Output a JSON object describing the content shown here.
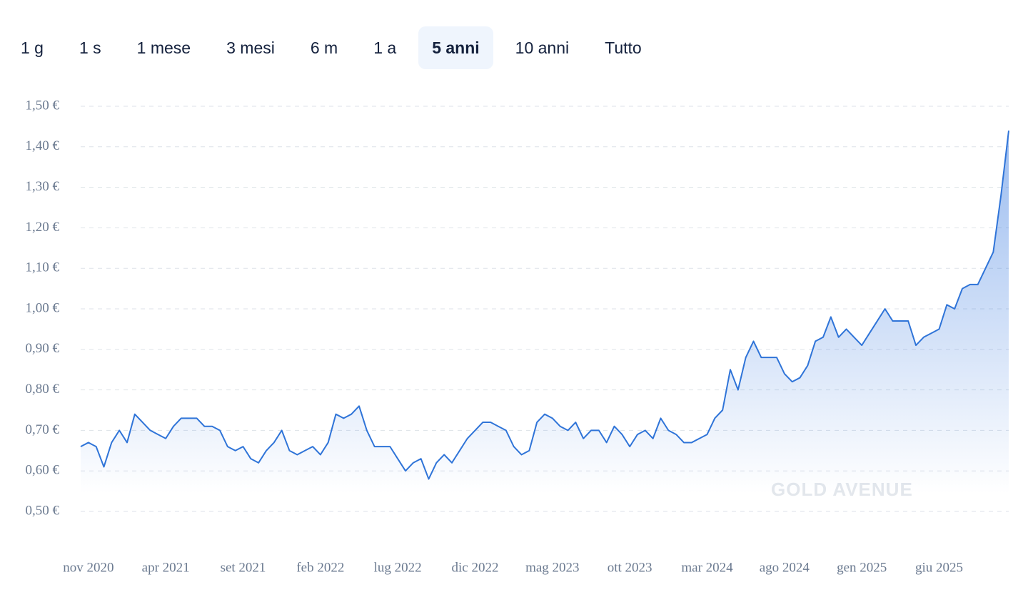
{
  "tabs": [
    {
      "label": "1 g",
      "active": false
    },
    {
      "label": "1 s",
      "active": false
    },
    {
      "label": "1 mese",
      "active": false
    },
    {
      "label": "3 mesi",
      "active": false
    },
    {
      "label": "6 m",
      "active": false
    },
    {
      "label": "1 a",
      "active": false
    },
    {
      "label": "5 anni",
      "active": true
    },
    {
      "label": "10 anni",
      "active": false
    },
    {
      "label": "Tutto",
      "active": false
    }
  ],
  "chart_data": {
    "type": "line",
    "watermark": "GOLD AVENUE",
    "categories": [
      null,
      "nov 2020",
      null,
      null,
      null,
      null,
      null,
      null,
      null,
      null,
      null,
      "apr 2021",
      null,
      null,
      null,
      null,
      null,
      null,
      null,
      null,
      null,
      "set 2021",
      null,
      null,
      null,
      null,
      null,
      null,
      null,
      null,
      null,
      "feb 2022",
      null,
      null,
      null,
      null,
      null,
      null,
      null,
      null,
      null,
      "lug 2022",
      null,
      null,
      null,
      null,
      null,
      null,
      null,
      null,
      null,
      "dic 2022",
      null,
      null,
      null,
      null,
      null,
      null,
      null,
      null,
      null,
      "mag 2023",
      null,
      null,
      null,
      null,
      null,
      null,
      null,
      null,
      null,
      "ott 2023",
      null,
      null,
      null,
      null,
      null,
      null,
      null,
      null,
      null,
      "mar 2024",
      null,
      null,
      null,
      null,
      null,
      null,
      null,
      null,
      null,
      "ago 2024",
      null,
      null,
      null,
      null,
      null,
      null,
      null,
      null,
      null,
      "gen 2025",
      null,
      null,
      null,
      null,
      null,
      null,
      null,
      null,
      null,
      "giu 2025",
      null,
      null,
      null,
      null,
      null,
      null,
      null,
      null,
      null
    ],
    "series": [
      {
        "color": "#2f74d8",
        "values": [
          0.66,
          0.67,
          0.66,
          0.61,
          0.67,
          0.7,
          0.67,
          0.74,
          0.72,
          0.7,
          0.69,
          0.68,
          0.71,
          0.73,
          0.73,
          0.73,
          0.71,
          0.71,
          0.7,
          0.66,
          0.65,
          0.66,
          0.63,
          0.62,
          0.65,
          0.67,
          0.7,
          0.65,
          0.64,
          0.65,
          0.66,
          0.64,
          0.67,
          0.74,
          0.73,
          0.74,
          0.76,
          0.7,
          0.66,
          0.66,
          0.66,
          0.63,
          0.6,
          0.62,
          0.63,
          0.58,
          0.62,
          0.64,
          0.62,
          0.65,
          0.68,
          0.7,
          0.72,
          0.72,
          0.71,
          0.7,
          0.66,
          0.64,
          0.65,
          0.72,
          0.74,
          0.73,
          0.71,
          0.7,
          0.72,
          0.68,
          0.7,
          0.7,
          0.67,
          0.71,
          0.69,
          0.66,
          0.69,
          0.7,
          0.68,
          0.73,
          0.7,
          0.69,
          0.67,
          0.67,
          0.68,
          0.69,
          0.73,
          0.75,
          0.85,
          0.8,
          0.88,
          0.92,
          0.88,
          0.88,
          0.88,
          0.84,
          0.82,
          0.83,
          0.86,
          0.92,
          0.93,
          0.98,
          0.93,
          0.95,
          0.93,
          0.91,
          0.94,
          0.97,
          1.0,
          0.97,
          0.97,
          0.97,
          0.91,
          0.93,
          0.94,
          0.95,
          1.01,
          1.0,
          1.05,
          1.06,
          1.06,
          1.1,
          1.14,
          1.28,
          1.44
        ]
      }
    ],
    "ylim": [
      0.5,
      1.5
    ],
    "yticks": [
      {
        "value": 0.5,
        "label": "0,50 €"
      },
      {
        "value": 0.6,
        "label": "0,60 €"
      },
      {
        "value": 0.7,
        "label": "0,70 €"
      },
      {
        "value": 0.8,
        "label": "0,80 €"
      },
      {
        "value": 0.9,
        "label": "0,90 €"
      },
      {
        "value": 1.0,
        "label": "1,00 €"
      },
      {
        "value": 1.1,
        "label": "1,10 €"
      },
      {
        "value": 1.2,
        "label": "1,20 €"
      },
      {
        "value": 1.3,
        "label": "1,30 €"
      },
      {
        "value": 1.4,
        "label": "1,40 €"
      },
      {
        "value": 1.5,
        "label": "1,50 €"
      }
    ],
    "grid": true
  }
}
